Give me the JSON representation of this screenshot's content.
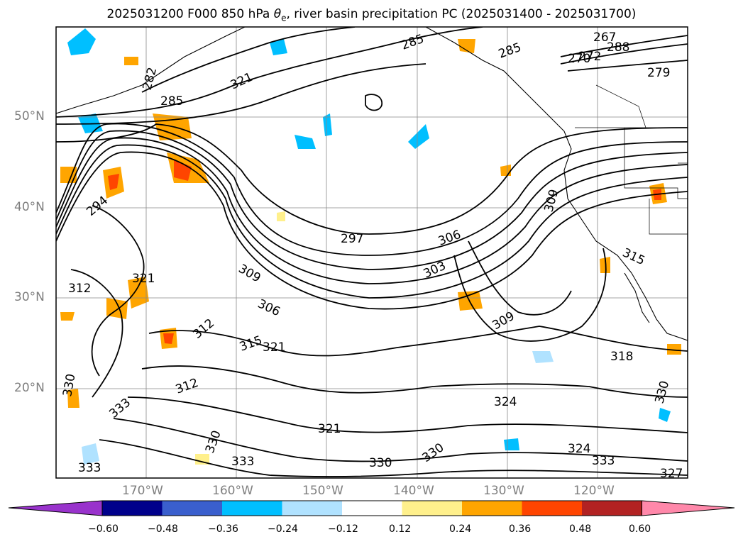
{
  "title_main": "2025031200 F000 850 hPa ",
  "title_symbol": "θ",
  "title_sub": "e",
  "title_rest": ", river basin precipitation PC (2025031400 - 2025031700)",
  "map": {
    "lat_labels": [
      "50°N",
      "40°N",
      "30°N",
      "20°N"
    ],
    "lon_labels": [
      "170°W",
      "160°W",
      "150°W",
      "140°W",
      "130°W",
      "120°W"
    ],
    "contour_labels": [
      "285",
      "267",
      "270",
      "272",
      "288",
      "279",
      "282",
      "285",
      "285",
      "321",
      "294",
      "297",
      "306",
      "303",
      "309",
      "321",
      "312",
      "306",
      "309",
      "315",
      "309",
      "312",
      "315",
      "321",
      "318",
      "312",
      "324",
      "330",
      "333",
      "330",
      "330",
      "333",
      "324",
      "321",
      "330",
      "333",
      "330",
      "333",
      "327"
    ]
  },
  "colorbar": {
    "tick_labels": [
      "−0.60",
      "−0.48",
      "−0.36",
      "−0.24",
      "−0.12",
      "0.12",
      "0.24",
      "0.36",
      "0.48",
      "0.60"
    ],
    "colors": [
      "#9933cc",
      "#00008b",
      "#3a5fcd",
      "#00bfff",
      "#b0e2ff",
      "#ffffff",
      "#fff08c",
      "#ffa500",
      "#ff4500",
      "#b22222",
      "#ff88aa"
    ]
  }
}
